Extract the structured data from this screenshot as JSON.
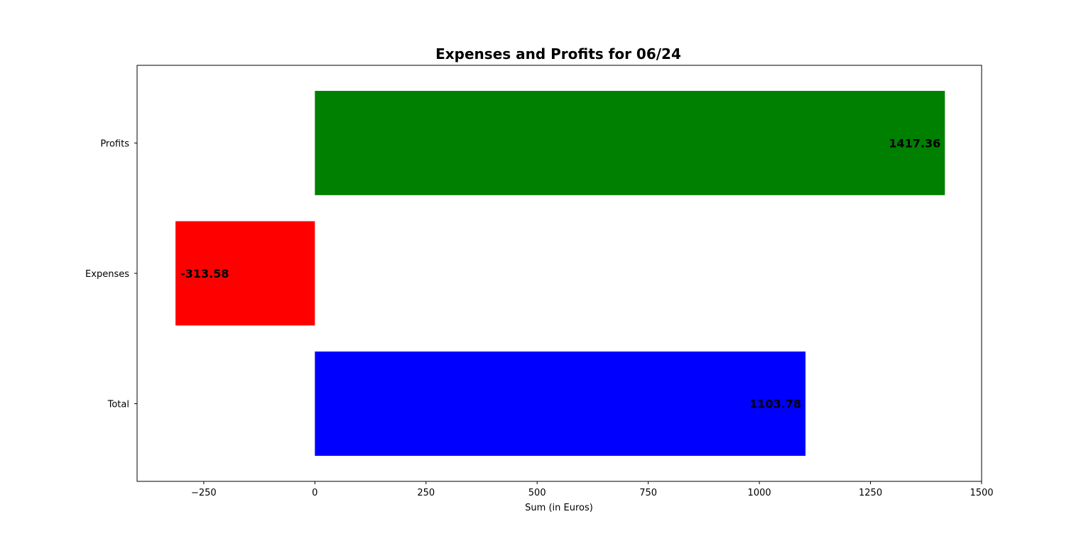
{
  "chart_data": {
    "type": "bar",
    "orientation": "horizontal",
    "title": "Expenses and Profits for 06/24",
    "xlabel": "Sum (in Euros)",
    "ylabel": "",
    "categories": [
      "Total",
      "Expenses",
      "Profits"
    ],
    "values": [
      1103.78,
      -313.58,
      1417.36
    ],
    "value_labels": [
      "1103.78",
      "-313.58",
      "1417.36"
    ],
    "colors": [
      "#0000ff",
      "#ff0000",
      "#008000"
    ],
    "xlim": [
      -400,
      1500
    ],
    "xticks": [
      -250,
      0,
      250,
      500,
      750,
      1000,
      1250,
      1500
    ],
    "xtick_labels": [
      "−250",
      "0",
      "250",
      "500",
      "750",
      "1000",
      "1250",
      "1500"
    ],
    "grid": false,
    "legend": "none"
  }
}
